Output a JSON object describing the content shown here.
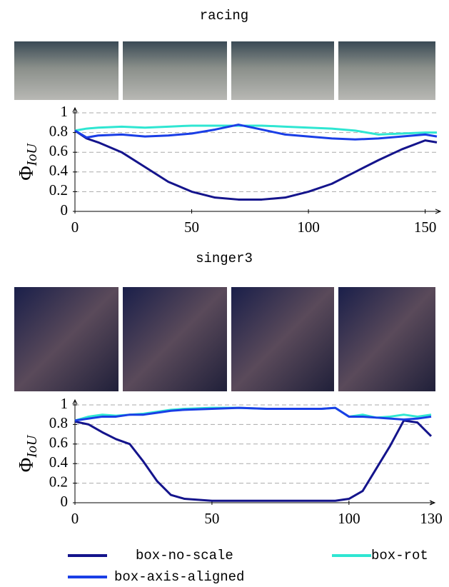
{
  "chart_data": [
    {
      "type": "line",
      "title": "racing",
      "ylabel": "Φ",
      "ylabel_sub": "IoU",
      "x": [
        0,
        5,
        10,
        20,
        30,
        40,
        50,
        60,
        70,
        80,
        90,
        100,
        110,
        120,
        130,
        140,
        150,
        155
      ],
      "xlim": [
        0,
        155
      ],
      "xticks": [
        0,
        50,
        100,
        150
      ],
      "ylim": [
        0,
        1
      ],
      "yticks": [
        0,
        0.2,
        0.4,
        0.6,
        0.8,
        1
      ],
      "grid": true,
      "series": [
        {
          "name": "box-no-scale",
          "color": "#14148c",
          "values": [
            0.82,
            0.74,
            0.7,
            0.6,
            0.45,
            0.3,
            0.2,
            0.14,
            0.12,
            0.12,
            0.14,
            0.2,
            0.28,
            0.4,
            0.52,
            0.63,
            0.72,
            0.7
          ]
        },
        {
          "name": "box-rot",
          "color": "#2fe6d2",
          "values": [
            0.82,
            0.84,
            0.85,
            0.86,
            0.85,
            0.86,
            0.87,
            0.87,
            0.87,
            0.87,
            0.86,
            0.85,
            0.84,
            0.82,
            0.78,
            0.79,
            0.8,
            0.8
          ]
        },
        {
          "name": "box-axis-aligned",
          "color": "#1a3ee6",
          "values": [
            0.82,
            0.75,
            0.77,
            0.78,
            0.76,
            0.77,
            0.79,
            0.83,
            0.88,
            0.83,
            0.78,
            0.76,
            0.74,
            0.73,
            0.74,
            0.76,
            0.78,
            0.76
          ]
        }
      ]
    },
    {
      "type": "line",
      "title": "singer3",
      "ylabel": "Φ",
      "ylabel_sub": "IoU",
      "x": [
        0,
        5,
        10,
        15,
        20,
        25,
        30,
        35,
        40,
        50,
        60,
        70,
        80,
        90,
        95,
        100,
        105,
        110,
        115,
        120,
        125,
        130
      ],
      "xlim": [
        0,
        130
      ],
      "xticks": [
        0,
        50,
        100,
        130
      ],
      "ylim": [
        0,
        1
      ],
      "yticks": [
        0,
        0.2,
        0.4,
        0.6,
        0.8,
        1
      ],
      "grid": true,
      "series": [
        {
          "name": "box-no-scale",
          "color": "#14148c",
          "values": [
            0.83,
            0.8,
            0.72,
            0.65,
            0.6,
            0.42,
            0.22,
            0.08,
            0.04,
            0.02,
            0.02,
            0.02,
            0.02,
            0.02,
            0.02,
            0.04,
            0.12,
            0.35,
            0.58,
            0.84,
            0.82,
            0.68
          ]
        },
        {
          "name": "box-rot",
          "color": "#2fe6d2",
          "values": [
            0.84,
            0.88,
            0.9,
            0.89,
            0.9,
            0.91,
            0.93,
            0.95,
            0.96,
            0.97,
            0.97,
            0.96,
            0.96,
            0.96,
            0.97,
            0.88,
            0.9,
            0.87,
            0.88,
            0.9,
            0.88,
            0.9
          ]
        },
        {
          "name": "box-axis-aligned",
          "color": "#1a3ee6",
          "values": [
            0.84,
            0.86,
            0.88,
            0.88,
            0.9,
            0.9,
            0.92,
            0.94,
            0.95,
            0.96,
            0.97,
            0.96,
            0.96,
            0.96,
            0.97,
            0.88,
            0.88,
            0.87,
            0.86,
            0.85,
            0.86,
            0.88
          ]
        }
      ]
    }
  ]
}
